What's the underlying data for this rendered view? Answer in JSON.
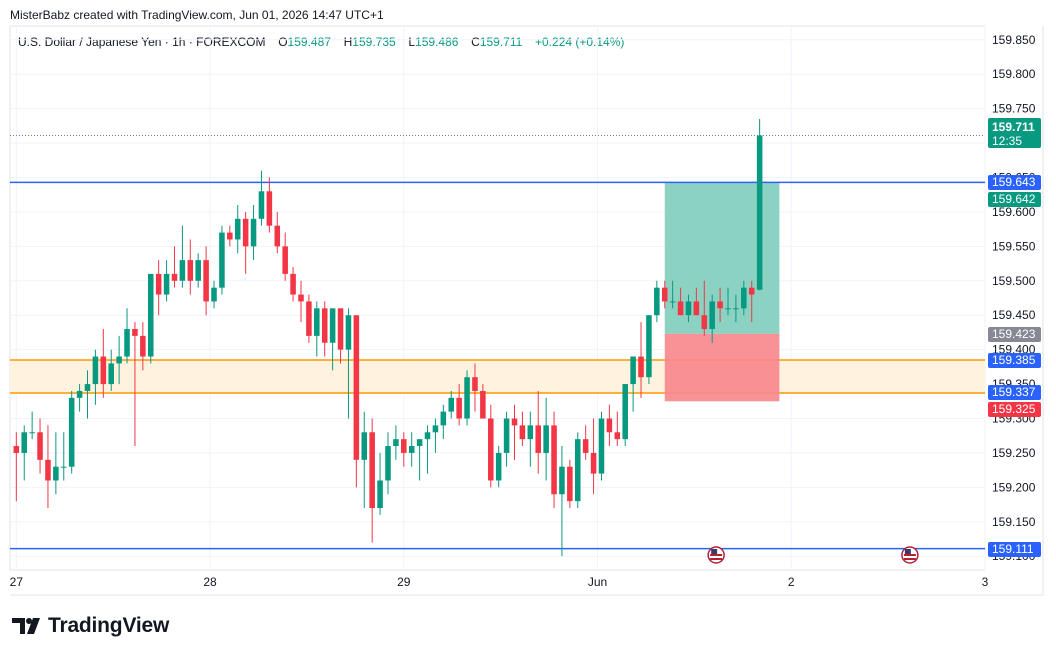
{
  "attribution": "MisterBabz created with TradingView.com, Jun 01, 2026 14:47 UTC+1",
  "symbol": {
    "name": "U.S. Dollar / Japanese Yen",
    "interval": "1h",
    "exchange": "FOREXCOM",
    "open_label": "O",
    "open": "159.487",
    "high_label": "H",
    "high": "159.735",
    "low_label": "L",
    "low": "159.486",
    "close_label": "C",
    "close": "159.711",
    "change": "+0.224 (+0.14%)"
  },
  "current_price": {
    "price": "159.711",
    "countdown": "12:35"
  },
  "price_labels": [
    {
      "text": "159.643",
      "value": 159.643,
      "color": "#2962ff"
    },
    {
      "text": "159.642",
      "value": 159.642,
      "color": "#089981"
    },
    {
      "text": "159.423",
      "value": 159.423,
      "color": "#868993"
    },
    {
      "text": "159.385",
      "value": 159.385,
      "color": "#2962ff"
    },
    {
      "text": "159.337",
      "value": 159.337,
      "color": "#2962ff"
    },
    {
      "text": "159.325",
      "value": 159.325,
      "color": "#f23645"
    },
    {
      "text": "159.111",
      "value": 159.111,
      "color": "#2962ff"
    }
  ],
  "logo_text": "TradingView",
  "colors": {
    "up": "#089981",
    "down": "#f23645",
    "line": "#2962ff",
    "zone_border": "#ff9800",
    "zone_fill": "#fff3e0",
    "profit": "#7fcdbb",
    "loss": "#f8868c"
  },
  "chart_data": {
    "type": "candlestick",
    "ylim": [
      159.08,
      159.87
    ],
    "y_ticks": [
      "159.850",
      "159.800",
      "159.750",
      "159.700",
      "159.650",
      "159.600",
      "159.550",
      "159.500",
      "159.450",
      "159.400",
      "159.350",
      "159.300",
      "159.250",
      "159.200",
      "159.150",
      "159.100"
    ],
    "x_ticks": [
      {
        "label": "27",
        "index": 0.0
      },
      {
        "label": "28",
        "index": 24.5
      },
      {
        "label": "29",
        "index": 49.0
      },
      {
        "label": "Jun",
        "index": 73.5
      },
      {
        "label": "2",
        "index": 98.0
      },
      {
        "label": "3",
        "index": 122.5
      }
    ],
    "x_index_range": [
      -0.8,
      122.5
    ],
    "horizontal_lines": [
      159.643,
      159.111
    ],
    "support_zone": {
      "top": 159.385,
      "bottom": 159.337
    },
    "long_position": {
      "start_index": 82.0,
      "end_index": 96.5,
      "entry": 159.423,
      "target": 159.642,
      "stop": 159.325
    },
    "last_close_line": 159.711,
    "event_icons": [
      {
        "index": 88.5
      },
      {
        "index": 113.0
      }
    ],
    "ohlc": [
      [
        159.26,
        159.28,
        159.18,
        159.25
      ],
      [
        159.25,
        159.29,
        159.21,
        159.28
      ],
      [
        159.28,
        159.31,
        159.27,
        159.28
      ],
      [
        159.28,
        159.3,
        159.22,
        159.24
      ],
      [
        159.24,
        159.29,
        159.17,
        159.21
      ],
      [
        159.21,
        159.28,
        159.19,
        159.23
      ],
      [
        159.23,
        159.28,
        159.21,
        159.23
      ],
      [
        159.23,
        159.34,
        159.22,
        159.33
      ],
      [
        159.33,
        159.35,
        159.31,
        159.34
      ],
      [
        159.34,
        159.37,
        159.3,
        159.35
      ],
      [
        159.35,
        159.4,
        159.32,
        159.39
      ],
      [
        159.39,
        159.43,
        159.33,
        159.35
      ],
      [
        159.35,
        159.4,
        159.34,
        159.38
      ],
      [
        159.38,
        159.42,
        159.35,
        159.39
      ],
      [
        159.39,
        159.46,
        159.38,
        159.43
      ],
      [
        159.43,
        159.44,
        159.26,
        159.42
      ],
      [
        159.42,
        159.44,
        159.37,
        159.39
      ],
      [
        159.39,
        159.51,
        159.38,
        159.51
      ],
      [
        159.51,
        159.53,
        159.45,
        159.48
      ],
      [
        159.48,
        159.53,
        159.47,
        159.51
      ],
      [
        159.51,
        159.55,
        159.49,
        159.5
      ],
      [
        159.5,
        159.58,
        159.49,
        159.53
      ],
      [
        159.53,
        159.56,
        159.48,
        159.5
      ],
      [
        159.5,
        159.54,
        159.49,
        159.53
      ],
      [
        159.53,
        159.55,
        159.45,
        159.47
      ],
      [
        159.47,
        159.5,
        159.46,
        159.49
      ],
      [
        159.49,
        159.58,
        159.48,
        159.57
      ],
      [
        159.57,
        159.58,
        159.55,
        159.56
      ],
      [
        159.56,
        159.61,
        159.54,
        159.59
      ],
      [
        159.59,
        159.6,
        159.51,
        159.55
      ],
      [
        159.55,
        159.61,
        159.53,
        159.59
      ],
      [
        159.59,
        159.66,
        159.58,
        159.63
      ],
      [
        159.63,
        159.65,
        159.57,
        159.58
      ],
      [
        159.58,
        159.6,
        159.54,
        159.55
      ],
      [
        159.55,
        159.57,
        159.5,
        159.51
      ],
      [
        159.51,
        159.52,
        159.47,
        159.48
      ],
      [
        159.48,
        159.5,
        159.44,
        159.47
      ],
      [
        159.47,
        159.48,
        159.41,
        159.42
      ],
      [
        159.42,
        159.47,
        159.39,
        159.46
      ],
      [
        159.46,
        159.47,
        159.39,
        159.41
      ],
      [
        159.41,
        159.46,
        159.37,
        159.46
      ],
      [
        159.46,
        159.46,
        159.38,
        159.4
      ],
      [
        159.4,
        159.46,
        159.3,
        159.45
      ],
      [
        159.45,
        159.45,
        159.2,
        159.24
      ],
      [
        159.24,
        159.31,
        159.17,
        159.28
      ],
      [
        159.28,
        159.3,
        159.12,
        159.17
      ],
      [
        159.17,
        159.25,
        159.16,
        159.21
      ],
      [
        159.21,
        159.28,
        159.19,
        159.26
      ],
      [
        159.26,
        159.29,
        159.24,
        159.27
      ],
      [
        159.27,
        159.28,
        159.23,
        159.25
      ],
      [
        159.25,
        159.28,
        159.23,
        159.26
      ],
      [
        159.26,
        159.27,
        159.21,
        159.27
      ],
      [
        159.27,
        159.29,
        159.22,
        159.28
      ],
      [
        159.28,
        159.3,
        159.25,
        159.29
      ],
      [
        159.29,
        159.32,
        159.27,
        159.31
      ],
      [
        159.31,
        159.34,
        159.3,
        159.33
      ],
      [
        159.33,
        159.35,
        159.29,
        159.3
      ],
      [
        159.3,
        159.37,
        159.29,
        159.36
      ],
      [
        159.36,
        159.38,
        159.31,
        159.34
      ],
      [
        159.34,
        159.35,
        159.3,
        159.3
      ],
      [
        159.3,
        159.32,
        159.2,
        159.21
      ],
      [
        159.21,
        159.26,
        159.2,
        159.25
      ],
      [
        159.25,
        159.31,
        159.23,
        159.3
      ],
      [
        159.3,
        159.32,
        159.24,
        159.29
      ],
      [
        159.29,
        159.31,
        159.26,
        159.27
      ],
      [
        159.27,
        159.31,
        159.23,
        159.29
      ],
      [
        159.29,
        159.34,
        159.22,
        159.25
      ],
      [
        159.25,
        159.33,
        159.21,
        159.29
      ],
      [
        159.29,
        159.31,
        159.17,
        159.19
      ],
      [
        159.19,
        159.26,
        159.1,
        159.23
      ],
      [
        159.23,
        159.24,
        159.17,
        159.18
      ],
      [
        159.18,
        159.28,
        159.17,
        159.27
      ],
      [
        159.27,
        159.29,
        159.24,
        159.25
      ],
      [
        159.25,
        159.3,
        159.19,
        159.22
      ],
      [
        159.22,
        159.31,
        159.21,
        159.3
      ],
      [
        159.3,
        159.32,
        159.26,
        159.28
      ],
      [
        159.28,
        159.31,
        159.26,
        159.27
      ],
      [
        159.27,
        159.35,
        159.26,
        159.35
      ],
      [
        159.35,
        159.39,
        159.31,
        159.39
      ],
      [
        159.39,
        159.44,
        159.33,
        159.36
      ],
      [
        159.36,
        159.45,
        159.35,
        159.45
      ],
      [
        159.45,
        159.5,
        159.44,
        159.49
      ],
      [
        159.49,
        159.5,
        159.46,
        159.47
      ],
      [
        159.47,
        159.5,
        159.46,
        159.47
      ],
      [
        159.47,
        159.49,
        159.45,
        159.45
      ],
      [
        159.45,
        159.48,
        159.44,
        159.47
      ],
      [
        159.47,
        159.49,
        159.45,
        159.45
      ],
      [
        159.45,
        159.5,
        159.42,
        159.43
      ],
      [
        159.43,
        159.48,
        159.41,
        159.47
      ],
      [
        159.47,
        159.49,
        159.44,
        159.46
      ],
      [
        159.46,
        159.49,
        159.45,
        159.46
      ],
      [
        159.46,
        159.48,
        159.44,
        159.46
      ],
      [
        159.46,
        159.5,
        159.45,
        159.49
      ],
      [
        159.49,
        159.5,
        159.44,
        159.48
      ],
      [
        159.487,
        159.735,
        159.486,
        159.711
      ]
    ]
  }
}
